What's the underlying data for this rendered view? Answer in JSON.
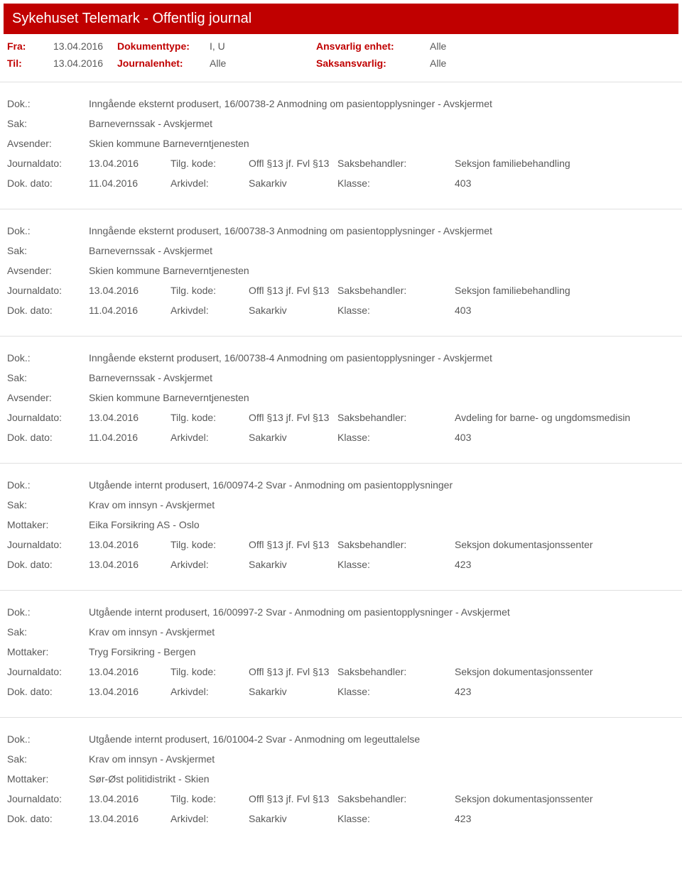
{
  "header": {
    "title": "Sykehuset Telemark - Offentlig journal"
  },
  "filters": {
    "row1": {
      "l1": "Fra:",
      "v1": "13.04.2016",
      "l2": "Dokumenttype:",
      "v2": "I, U",
      "l3": "Ansvarlig enhet:",
      "v3": "Alle"
    },
    "row2": {
      "l1": "Til:",
      "v1": "13.04.2016",
      "l2": "Journalenhet:",
      "v2": "Alle",
      "l3": "Saksansvarlig:",
      "v3": "Alle"
    }
  },
  "labels": {
    "dok": "Dok.:",
    "sak": "Sak:",
    "avsender": "Avsender:",
    "mottaker": "Mottaker:",
    "journaldato": "Journaldato:",
    "tilgkode": "Tilg. kode:",
    "saksbehandler": "Saksbehandler:",
    "dokdato": "Dok. dato:",
    "arkivdel": "Arkivdel:",
    "klasse": "Klasse:"
  },
  "entries": [
    {
      "dok": "Inngående eksternt produsert, 16/00738-2 Anmodning om pasientopplysninger - Avskjermet",
      "sak": "Barnevernssak - Avskjermet",
      "partyLabel": "Avsender:",
      "party": "Skien kommune Barneverntjenesten",
      "jdato": "13.04.2016",
      "tilg": "Offl §13 jf. Fvl §13",
      "saksb": "Seksjon familiebehandling",
      "ddato": "11.04.2016",
      "arkiv": "Sakarkiv",
      "klasse": "403"
    },
    {
      "dok": "Inngående eksternt produsert, 16/00738-3 Anmodning om pasientopplysninger - Avskjermet",
      "sak": "Barnevernssak - Avskjermet",
      "partyLabel": "Avsender:",
      "party": "Skien kommune Barneverntjenesten",
      "jdato": "13.04.2016",
      "tilg": "Offl §13 jf. Fvl §13",
      "saksb": "Seksjon familiebehandling",
      "ddato": "11.04.2016",
      "arkiv": "Sakarkiv",
      "klasse": "403"
    },
    {
      "dok": "Inngående eksternt produsert, 16/00738-4 Anmodning om pasientopplysninger - Avskjermet",
      "sak": "Barnevernssak - Avskjermet",
      "partyLabel": "Avsender:",
      "party": "Skien kommune Barneverntjenesten",
      "jdato": "13.04.2016",
      "tilg": "Offl §13 jf. Fvl §13",
      "saksb": "Avdeling for barne- og ungdomsmedisin",
      "ddato": "11.04.2016",
      "arkiv": "Sakarkiv",
      "klasse": "403"
    },
    {
      "dok": "Utgående internt produsert, 16/00974-2 Svar - Anmodning om pasientopplysninger",
      "sak": "Krav om innsyn - Avskjermet",
      "partyLabel": "Mottaker:",
      "party": "Eika Forsikring AS - Oslo",
      "jdato": "13.04.2016",
      "tilg": "Offl §13 jf. Fvl §13",
      "saksb": "Seksjon dokumentasjonssenter",
      "ddato": "13.04.2016",
      "arkiv": "Sakarkiv",
      "klasse": "423"
    },
    {
      "dok": "Utgående internt produsert, 16/00997-2 Svar - Anmodning om pasientopplysninger - Avskjermet",
      "sak": "Krav om innsyn - Avskjermet",
      "partyLabel": "Mottaker:",
      "party": "Tryg Forsikring - Bergen",
      "jdato": "13.04.2016",
      "tilg": "Offl §13 jf. Fvl §13",
      "saksb": "Seksjon dokumentasjonssenter",
      "ddato": "13.04.2016",
      "arkiv": "Sakarkiv",
      "klasse": "423"
    },
    {
      "dok": "Utgående internt produsert, 16/01004-2 Svar - Anmodning om legeuttalelse",
      "sak": "Krav om innsyn - Avskjermet",
      "partyLabel": "Mottaker:",
      "party": "Sør-Øst politidistrikt - Skien",
      "jdato": "13.04.2016",
      "tilg": "Offl §13 jf. Fvl §13",
      "saksb": "Seksjon dokumentasjonssenter",
      "ddato": "13.04.2016",
      "arkiv": "Sakarkiv",
      "klasse": "423"
    }
  ]
}
